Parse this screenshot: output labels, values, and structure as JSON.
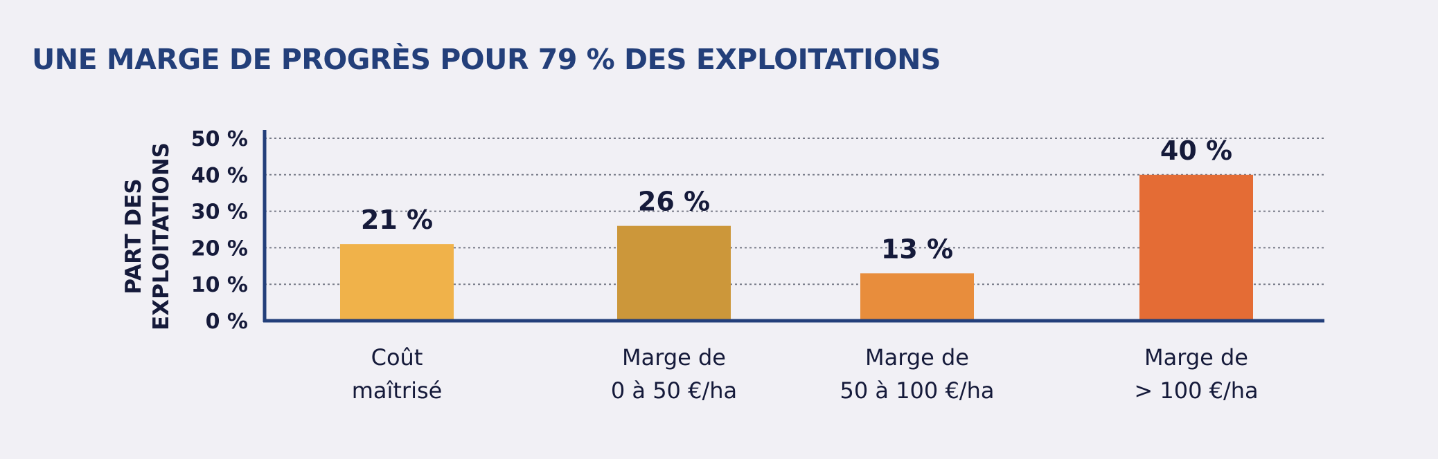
{
  "header": {
    "title": "UNE MARGE DE PROGRÈS POUR 79 % DES EXPLOITATIONS"
  },
  "chart_data": {
    "type": "bar",
    "title": "UNE MARGE DE PROGRÈS POUR 79 % DES EXPLOITATIONS",
    "ylabel": "PART DES EXPLOITATIONS",
    "ylabel_lines": [
      "PART DES",
      "EXPLOITATIONS"
    ],
    "xlabel": "",
    "ylim": [
      0,
      50
    ],
    "yticks": [
      0,
      10,
      20,
      30,
      40,
      50
    ],
    "ytick_labels": [
      "0 %",
      "10 %",
      "20 %",
      "30 %",
      "40 %",
      "50 %"
    ],
    "grid": true,
    "categories": [
      "Coût maîtrisé",
      "Marge de 0 à 50 €/ha",
      "Marge de 50 à 100 €/ha",
      "Marge de > 100 €/ha"
    ],
    "category_lines": [
      [
        "Coût",
        "maîtrisé"
      ],
      [
        "Marge de",
        "0 à 50 €/ha"
      ],
      [
        "Marge de",
        "50 à 100 €/ha"
      ],
      [
        "Marge de",
        "> 100 €/ha"
      ]
    ],
    "values": [
      21,
      26,
      13,
      40
    ],
    "value_labels": [
      "21 %",
      "26 %",
      "13 %",
      "40 %"
    ],
    "colors": [
      "#f0b24a",
      "#cc973a",
      "#e88d3c",
      "#e46c35"
    ],
    "axis_color": "#233f7a",
    "grid_color": "#777a88"
  }
}
